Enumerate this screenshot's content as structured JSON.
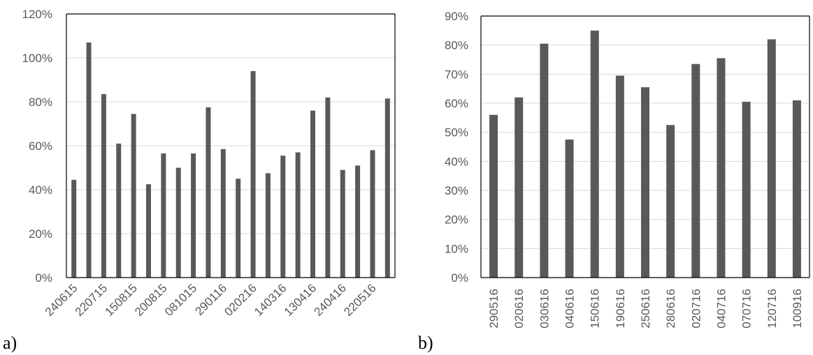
{
  "chart_data": [
    {
      "panel_label": "a)",
      "type": "bar",
      "color": "#595959",
      "ylim": [
        0,
        120
      ],
      "yticks": [
        "0%",
        "20%",
        "40%",
        "60%",
        "80%",
        "100%",
        "120%"
      ],
      "gridlines": true,
      "categories": [
        "240615",
        "",
        "220715",
        "",
        "150815",
        "",
        "200815",
        "",
        "081015",
        "",
        "290116",
        "",
        "020216",
        "",
        "140316",
        "",
        "130416",
        "",
        "240416",
        "",
        "220516",
        ""
      ],
      "values": [
        44.5,
        107,
        83.5,
        61,
        74.5,
        42.5,
        56.5,
        50,
        56.5,
        77.5,
        58.5,
        45,
        94,
        47.5,
        55.5,
        57,
        76,
        82,
        49,
        51,
        58,
        81.5
      ]
    },
    {
      "panel_label": "b)",
      "type": "bar",
      "color": "#595959",
      "ylim": [
        0,
        90
      ],
      "yticks": [
        "0%",
        "10%",
        "20%",
        "30%",
        "40%",
        "50%",
        "60%",
        "70%",
        "80%",
        "90%"
      ],
      "gridlines": true,
      "categories": [
        "290516",
        "020616",
        "030616",
        "040616",
        "150616",
        "190616",
        "250616",
        "280616",
        "020716",
        "040716",
        "070716",
        "120716",
        "100916"
      ],
      "values": [
        56,
        62,
        80.5,
        47.5,
        85,
        69.5,
        65.5,
        52.5,
        73.5,
        75.5,
        60.5,
        82,
        61
      ]
    }
  ]
}
